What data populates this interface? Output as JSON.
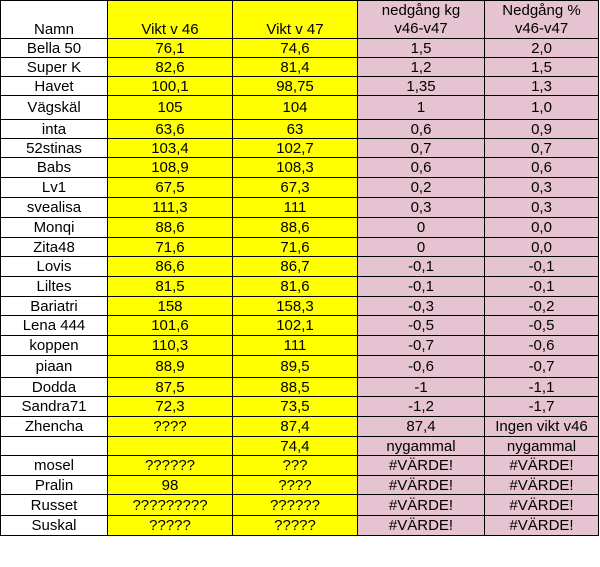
{
  "colors": {
    "grid": "#000000",
    "name_column": "#ffffff",
    "weight_columns": "#ffff00",
    "loss_columns": "#e6c3d0"
  },
  "header": [
    "Namn",
    "Vikt v 46",
    "Vikt v 47",
    "nedgång kg\nv46-v47",
    "Nedgång %\nv46-v47"
  ],
  "rows": [
    [
      "Bella 50",
      "76,1",
      "74,6",
      "1,5",
      "2,0"
    ],
    [
      "Super K",
      "82,6",
      "81,4",
      "1,2",
      "1,5"
    ],
    [
      "Havet",
      "100,1",
      "98,75",
      "1,35",
      "1,3"
    ],
    [
      "Vägskäl",
      "105",
      "104",
      "1",
      "1,0"
    ],
    [
      "inta",
      "63,6",
      "63",
      "0,6",
      "0,9"
    ],
    [
      "52stinas",
      "103,4",
      "102,7",
      "0,7",
      "0,7"
    ],
    [
      "Babs",
      "108,9",
      "108,3",
      "0,6",
      "0,6"
    ],
    [
      "Lv1",
      "67,5",
      "67,3",
      "0,2",
      "0,3"
    ],
    [
      "svealisa",
      "111,3",
      "111",
      "0,3",
      "0,3"
    ],
    [
      "Monqi",
      "88,6",
      "88,6",
      "0",
      "0,0"
    ],
    [
      "Zita48",
      "71,6",
      "71,6",
      "0",
      "0,0"
    ],
    [
      "Lovis",
      "86,6",
      "86,7",
      "-0,1",
      "-0,1"
    ],
    [
      "Liltes",
      "81,5",
      "81,6",
      "-0,1",
      "-0,1"
    ],
    [
      "Bariatri",
      "158",
      "158,3",
      "-0,3",
      "-0,2"
    ],
    [
      "Lena 444",
      "101,6",
      "102,1",
      "-0,5",
      "-0,5"
    ],
    [
      "koppen",
      "110,3",
      "111",
      "-0,7",
      "-0,6"
    ],
    [
      "piaan",
      "88,9",
      "89,5",
      "-0,6",
      "-0,7"
    ],
    [
      "Dodda",
      "87,5",
      "88,5",
      "-1",
      "-1,1"
    ],
    [
      "Sandra71",
      "72,3",
      "73,5",
      "-1,2",
      "-1,7"
    ],
    [
      "Zhencha",
      "????",
      "87,4",
      "87,4",
      "Ingen vikt v46"
    ],
    [
      "",
      "",
      "74,4",
      "nygammal",
      "nygammal"
    ],
    [
      "mosel",
      "??????",
      "???",
      "#VÄRDE!",
      "#VÄRDE!"
    ],
    [
      "Pralin",
      "98",
      "????",
      "#VÄRDE!",
      "#VÄRDE!"
    ],
    [
      "Russet",
      "?????????",
      "??????",
      "#VÄRDE!",
      "#VÄRDE!"
    ],
    [
      "Suskal",
      "?????",
      "?????",
      "#VÄRDE!",
      "#VÄRDE!"
    ]
  ]
}
